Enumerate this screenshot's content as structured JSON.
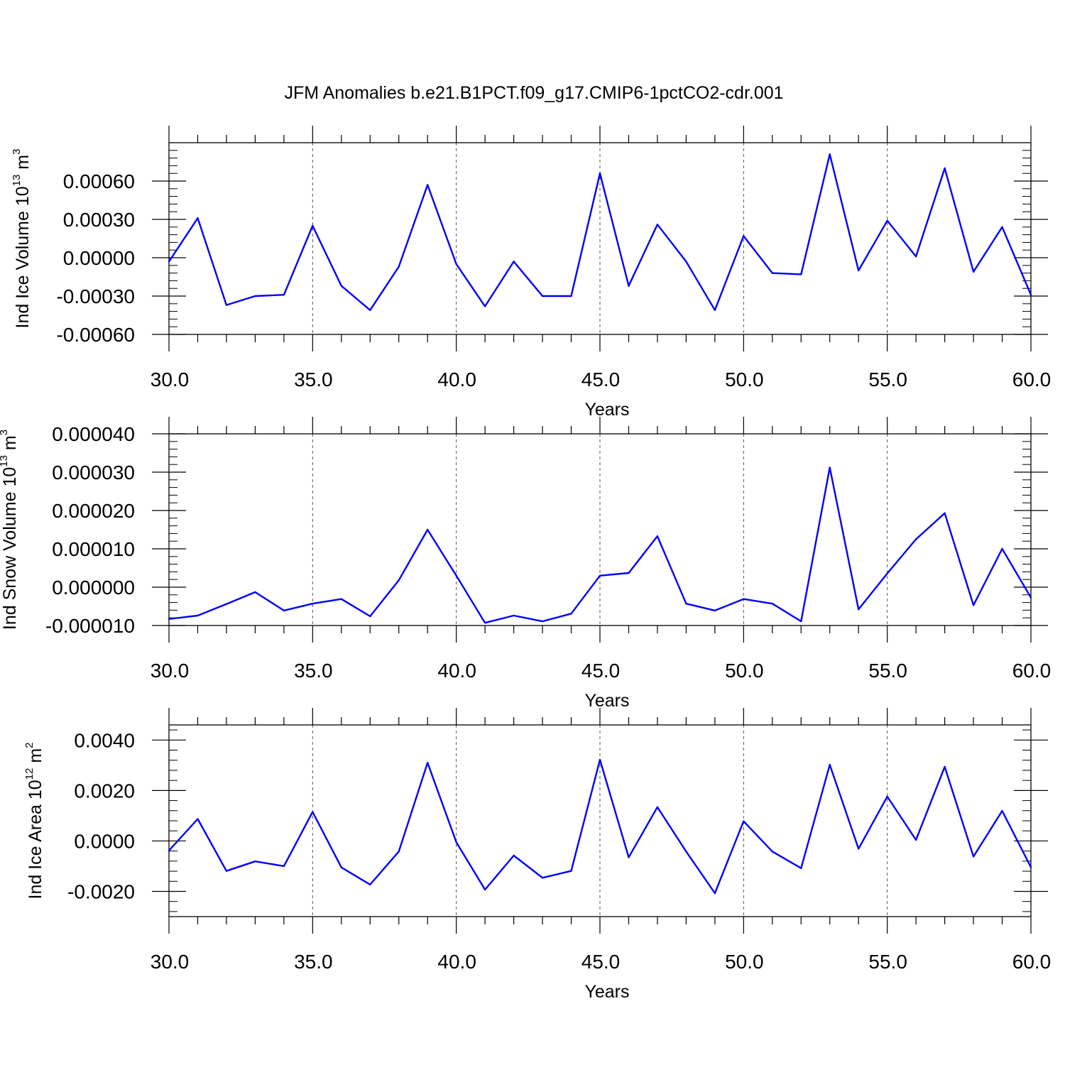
{
  "title": "JFM Anomalies b.e21.B1PCT.f09_g17.CMIP6-1pctCO2-cdr.001",
  "colors": {
    "line": "#0000ff",
    "axis": "#000000",
    "grid": "#555555"
  },
  "chart_data": [
    {
      "type": "line",
      "ylabel": {
        "text": "Ind Ice Volume 10",
        "sup": "13",
        "unit": " m",
        "unit_sup": "3"
      },
      "xlabel": "Years",
      "xlim": [
        30,
        60
      ],
      "ylim": [
        -0.0006,
        0.0009
      ],
      "xticks": [
        30,
        35,
        40,
        45,
        50,
        55,
        60
      ],
      "xtick_labels": [
        "30.0",
        "35.0",
        "40.0",
        "45.0",
        "50.0",
        "55.0",
        "60.0"
      ],
      "yticks": [
        -0.0006,
        -0.0003,
        0,
        0.0003,
        0.0006
      ],
      "ytick_labels": [
        "-0.00060",
        "-0.00030",
        "0.00000",
        "0.00030",
        "0.00060"
      ],
      "x": [
        30,
        31,
        32,
        33,
        34,
        35,
        36,
        37,
        38,
        39,
        40,
        41,
        42,
        43,
        44,
        45,
        46,
        47,
        48,
        49,
        50,
        51,
        52,
        53,
        54,
        55,
        56,
        57,
        58,
        59,
        60
      ],
      "y": [
        -3e-05,
        0.00031,
        -0.00037,
        -0.0003,
        -0.00029,
        0.00025,
        -0.00022,
        -0.00041,
        -7e-05,
        0.00057,
        -5e-05,
        -0.00038,
        -3e-05,
        -0.0003,
        -0.0003,
        0.00066,
        -0.00022,
        0.00026,
        -3e-05,
        -0.00041,
        0.00017,
        -0.00012,
        -0.00013,
        0.00081,
        -0.0001,
        0.00029,
        1e-05,
        0.0007,
        -0.00011,
        0.00024,
        -0.00029
      ]
    },
    {
      "type": "line",
      "ylabel": {
        "text": "Ind Snow Volume 10",
        "sup": "13",
        "unit": " m",
        "unit_sup": "3"
      },
      "xlabel": "Years",
      "xlim": [
        30,
        60
      ],
      "ylim": [
        -1e-05,
        4e-05
      ],
      "xticks": [
        30,
        35,
        40,
        45,
        50,
        55,
        60
      ],
      "xtick_labels": [
        "30.0",
        "35.0",
        "40.0",
        "45.0",
        "50.0",
        "55.0",
        "60.0"
      ],
      "yticks": [
        -1e-05,
        0,
        1e-05,
        2e-05,
        3e-05,
        4e-05
      ],
      "ytick_labels": [
        "-0.000010",
        "0.000000",
        "0.000010",
        "0.000020",
        "0.000030",
        "0.000040"
      ],
      "x": [
        30,
        31,
        32,
        33,
        34,
        35,
        36,
        37,
        38,
        39,
        40,
        41,
        42,
        43,
        44,
        45,
        46,
        47,
        48,
        49,
        50,
        51,
        52,
        53,
        54,
        55,
        56,
        57,
        58,
        59,
        60
      ],
      "y": [
        -8.3e-06,
        -7.4e-06,
        -4.4e-06,
        -1.3e-06,
        -6.1e-06,
        -4.3e-06,
        -3.1e-06,
        -7.6e-06,
        1.8e-06,
        1.5e-05,
        3e-06,
        -9.3e-06,
        -7.4e-06,
        -8.9e-06,
        -6.9e-06,
        3e-06,
        3.7e-06,
        1.33e-05,
        -4.3e-06,
        -6.1e-06,
        -3.1e-06,
        -4.3e-06,
        -8.9e-06,
        3.12e-05,
        -5.8e-06,
        3.6e-06,
        1.25e-05,
        1.93e-05,
        -4.7e-06,
        1e-05,
        -2.7e-06
      ]
    },
    {
      "type": "line",
      "ylabel": {
        "text": "Ind Ice Area 10",
        "sup": "12",
        "unit": " m",
        "unit_sup": "2"
      },
      "xlabel": "Years",
      "xlim": [
        30,
        60
      ],
      "ylim": [
        -0.003,
        0.0046
      ],
      "xticks": [
        30,
        35,
        40,
        45,
        50,
        55,
        60
      ],
      "xtick_labels": [
        "30.0",
        "35.0",
        "40.0",
        "45.0",
        "50.0",
        "55.0",
        "60.0"
      ],
      "yticks": [
        -0.002,
        0,
        0.002,
        0.004
      ],
      "ytick_labels": [
        "-0.0020",
        "0.0000",
        "0.0020",
        "0.0040"
      ],
      "x": [
        30,
        31,
        32,
        33,
        34,
        35,
        36,
        37,
        38,
        39,
        40,
        41,
        42,
        43,
        44,
        45,
        46,
        47,
        48,
        49,
        50,
        51,
        52,
        53,
        54,
        55,
        56,
        57,
        58,
        59,
        60
      ],
      "y": [
        -0.00038,
        0.00087,
        -0.00119,
        -0.00081,
        -0.001,
        0.00115,
        -0.00105,
        -0.00173,
        -0.00042,
        0.0031,
        -5e-05,
        -0.00193,
        -0.00058,
        -0.00146,
        -0.00119,
        0.00322,
        -0.00065,
        0.00134,
        -0.00042,
        -0.00207,
        0.00078,
        -0.00042,
        -0.00108,
        0.00302,
        -0.00031,
        0.00176,
        4e-05,
        0.00294,
        -0.00062,
        0.00119,
        -0.00104
      ]
    }
  ]
}
